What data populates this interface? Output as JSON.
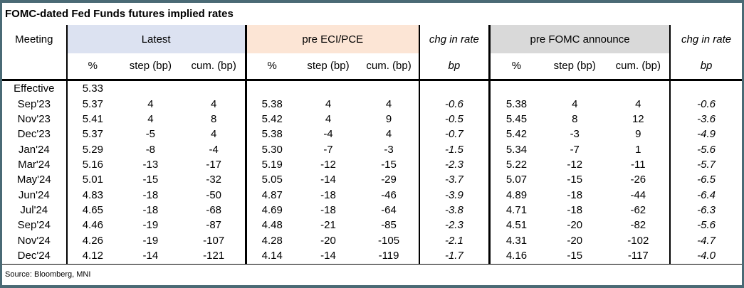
{
  "title": "FOMC-dated Fed Funds futures implied rates",
  "source": "Source: Bloomberg, MNI",
  "colors": {
    "latest_header_bg": "#dce2f1",
    "pre_eci_pce_header_bg": "#fce5d5",
    "pre_fomc_header_bg": "#d9d9d9",
    "outer_frame": "#4a6a75",
    "grid_line": "#000000"
  },
  "header": {
    "meeting": "Meeting",
    "latest": {
      "label": "Latest",
      "sub": [
        "%",
        "step (bp)",
        "cum. (bp)"
      ]
    },
    "eci": {
      "label": "pre ECI/PCE",
      "sub": [
        "%",
        "step (bp)",
        "cum. (bp)"
      ]
    },
    "chg1": {
      "label": "chg in rate",
      "sub": "bp"
    },
    "fomc": {
      "label": "pre FOMC announce",
      "sub": [
        "%",
        "step (bp)",
        "cum. (bp)"
      ]
    },
    "chg2": {
      "label": "chg in rate",
      "sub": "bp"
    }
  },
  "chart_data": {
    "type": "table",
    "title": "FOMC-dated Fed Funds futures implied rates",
    "column_groups": [
      "Meeting",
      "Latest (%, step bp, cum. bp)",
      "pre ECI/PCE (%, step bp, cum. bp)",
      "chg in rate bp",
      "pre FOMC announce (%, step bp, cum. bp)",
      "chg in rate bp"
    ],
    "rows": [
      {
        "meeting": "Effective",
        "latest": [
          "5.33",
          "",
          ""
        ],
        "pre_eci_pce": [
          "",
          "",
          ""
        ],
        "chg_vs_eci_bp": "",
        "pre_fomc": [
          "",
          "",
          ""
        ],
        "chg_vs_fomc_bp": ""
      },
      {
        "meeting": "Sep'23",
        "latest": [
          "5.37",
          "4",
          "4"
        ],
        "pre_eci_pce": [
          "5.38",
          "4",
          "4"
        ],
        "chg_vs_eci_bp": "-0.6",
        "pre_fomc": [
          "5.38",
          "4",
          "4"
        ],
        "chg_vs_fomc_bp": "-0.6"
      },
      {
        "meeting": "Nov'23",
        "latest": [
          "5.41",
          "4",
          "8"
        ],
        "pre_eci_pce": [
          "5.42",
          "4",
          "9"
        ],
        "chg_vs_eci_bp": "-0.5",
        "pre_fomc": [
          "5.45",
          "8",
          "12"
        ],
        "chg_vs_fomc_bp": "-3.6"
      },
      {
        "meeting": "Dec'23",
        "latest": [
          "5.37",
          "-5",
          "4"
        ],
        "pre_eci_pce": [
          "5.38",
          "-4",
          "4"
        ],
        "chg_vs_eci_bp": "-0.7",
        "pre_fomc": [
          "5.42",
          "-3",
          "9"
        ],
        "chg_vs_fomc_bp": "-4.9"
      },
      {
        "meeting": "Jan'24",
        "latest": [
          "5.29",
          "-8",
          "-4"
        ],
        "pre_eci_pce": [
          "5.30",
          "-7",
          "-3"
        ],
        "chg_vs_eci_bp": "-1.5",
        "pre_fomc": [
          "5.34",
          "-7",
          "1"
        ],
        "chg_vs_fomc_bp": "-5.6"
      },
      {
        "meeting": "Mar'24",
        "latest": [
          "5.16",
          "-13",
          "-17"
        ],
        "pre_eci_pce": [
          "5.19",
          "-12",
          "-15"
        ],
        "chg_vs_eci_bp": "-2.3",
        "pre_fomc": [
          "5.22",
          "-12",
          "-11"
        ],
        "chg_vs_fomc_bp": "-5.7"
      },
      {
        "meeting": "May'24",
        "latest": [
          "5.01",
          "-15",
          "-32"
        ],
        "pre_eci_pce": [
          "5.05",
          "-14",
          "-29"
        ],
        "chg_vs_eci_bp": "-3.7",
        "pre_fomc": [
          "5.07",
          "-15",
          "-26"
        ],
        "chg_vs_fomc_bp": "-6.5"
      },
      {
        "meeting": "Jun'24",
        "latest": [
          "4.83",
          "-18",
          "-50"
        ],
        "pre_eci_pce": [
          "4.87",
          "-18",
          "-46"
        ],
        "chg_vs_eci_bp": "-3.9",
        "pre_fomc": [
          "4.89",
          "-18",
          "-44"
        ],
        "chg_vs_fomc_bp": "-6.4"
      },
      {
        "meeting": "Jul'24",
        "latest": [
          "4.65",
          "-18",
          "-68"
        ],
        "pre_eci_pce": [
          "4.69",
          "-18",
          "-64"
        ],
        "chg_vs_eci_bp": "-3.8",
        "pre_fomc": [
          "4.71",
          "-18",
          "-62"
        ],
        "chg_vs_fomc_bp": "-6.3"
      },
      {
        "meeting": "Sep'24",
        "latest": [
          "4.46",
          "-19",
          "-87"
        ],
        "pre_eci_pce": [
          "4.48",
          "-21",
          "-85"
        ],
        "chg_vs_eci_bp": "-2.3",
        "pre_fomc": [
          "4.51",
          "-20",
          "-82"
        ],
        "chg_vs_fomc_bp": "-5.6"
      },
      {
        "meeting": "Nov'24",
        "latest": [
          "4.26",
          "-19",
          "-107"
        ],
        "pre_eci_pce": [
          "4.28",
          "-20",
          "-105"
        ],
        "chg_vs_eci_bp": "-2.1",
        "pre_fomc": [
          "4.31",
          "-20",
          "-102"
        ],
        "chg_vs_fomc_bp": "-4.7"
      },
      {
        "meeting": "Dec'24",
        "latest": [
          "4.12",
          "-14",
          "-121"
        ],
        "pre_eci_pce": [
          "4.14",
          "-14",
          "-119"
        ],
        "chg_vs_eci_bp": "-1.7",
        "pre_fomc": [
          "4.16",
          "-15",
          "-117"
        ],
        "chg_vs_fomc_bp": "-4.0"
      }
    ]
  }
}
